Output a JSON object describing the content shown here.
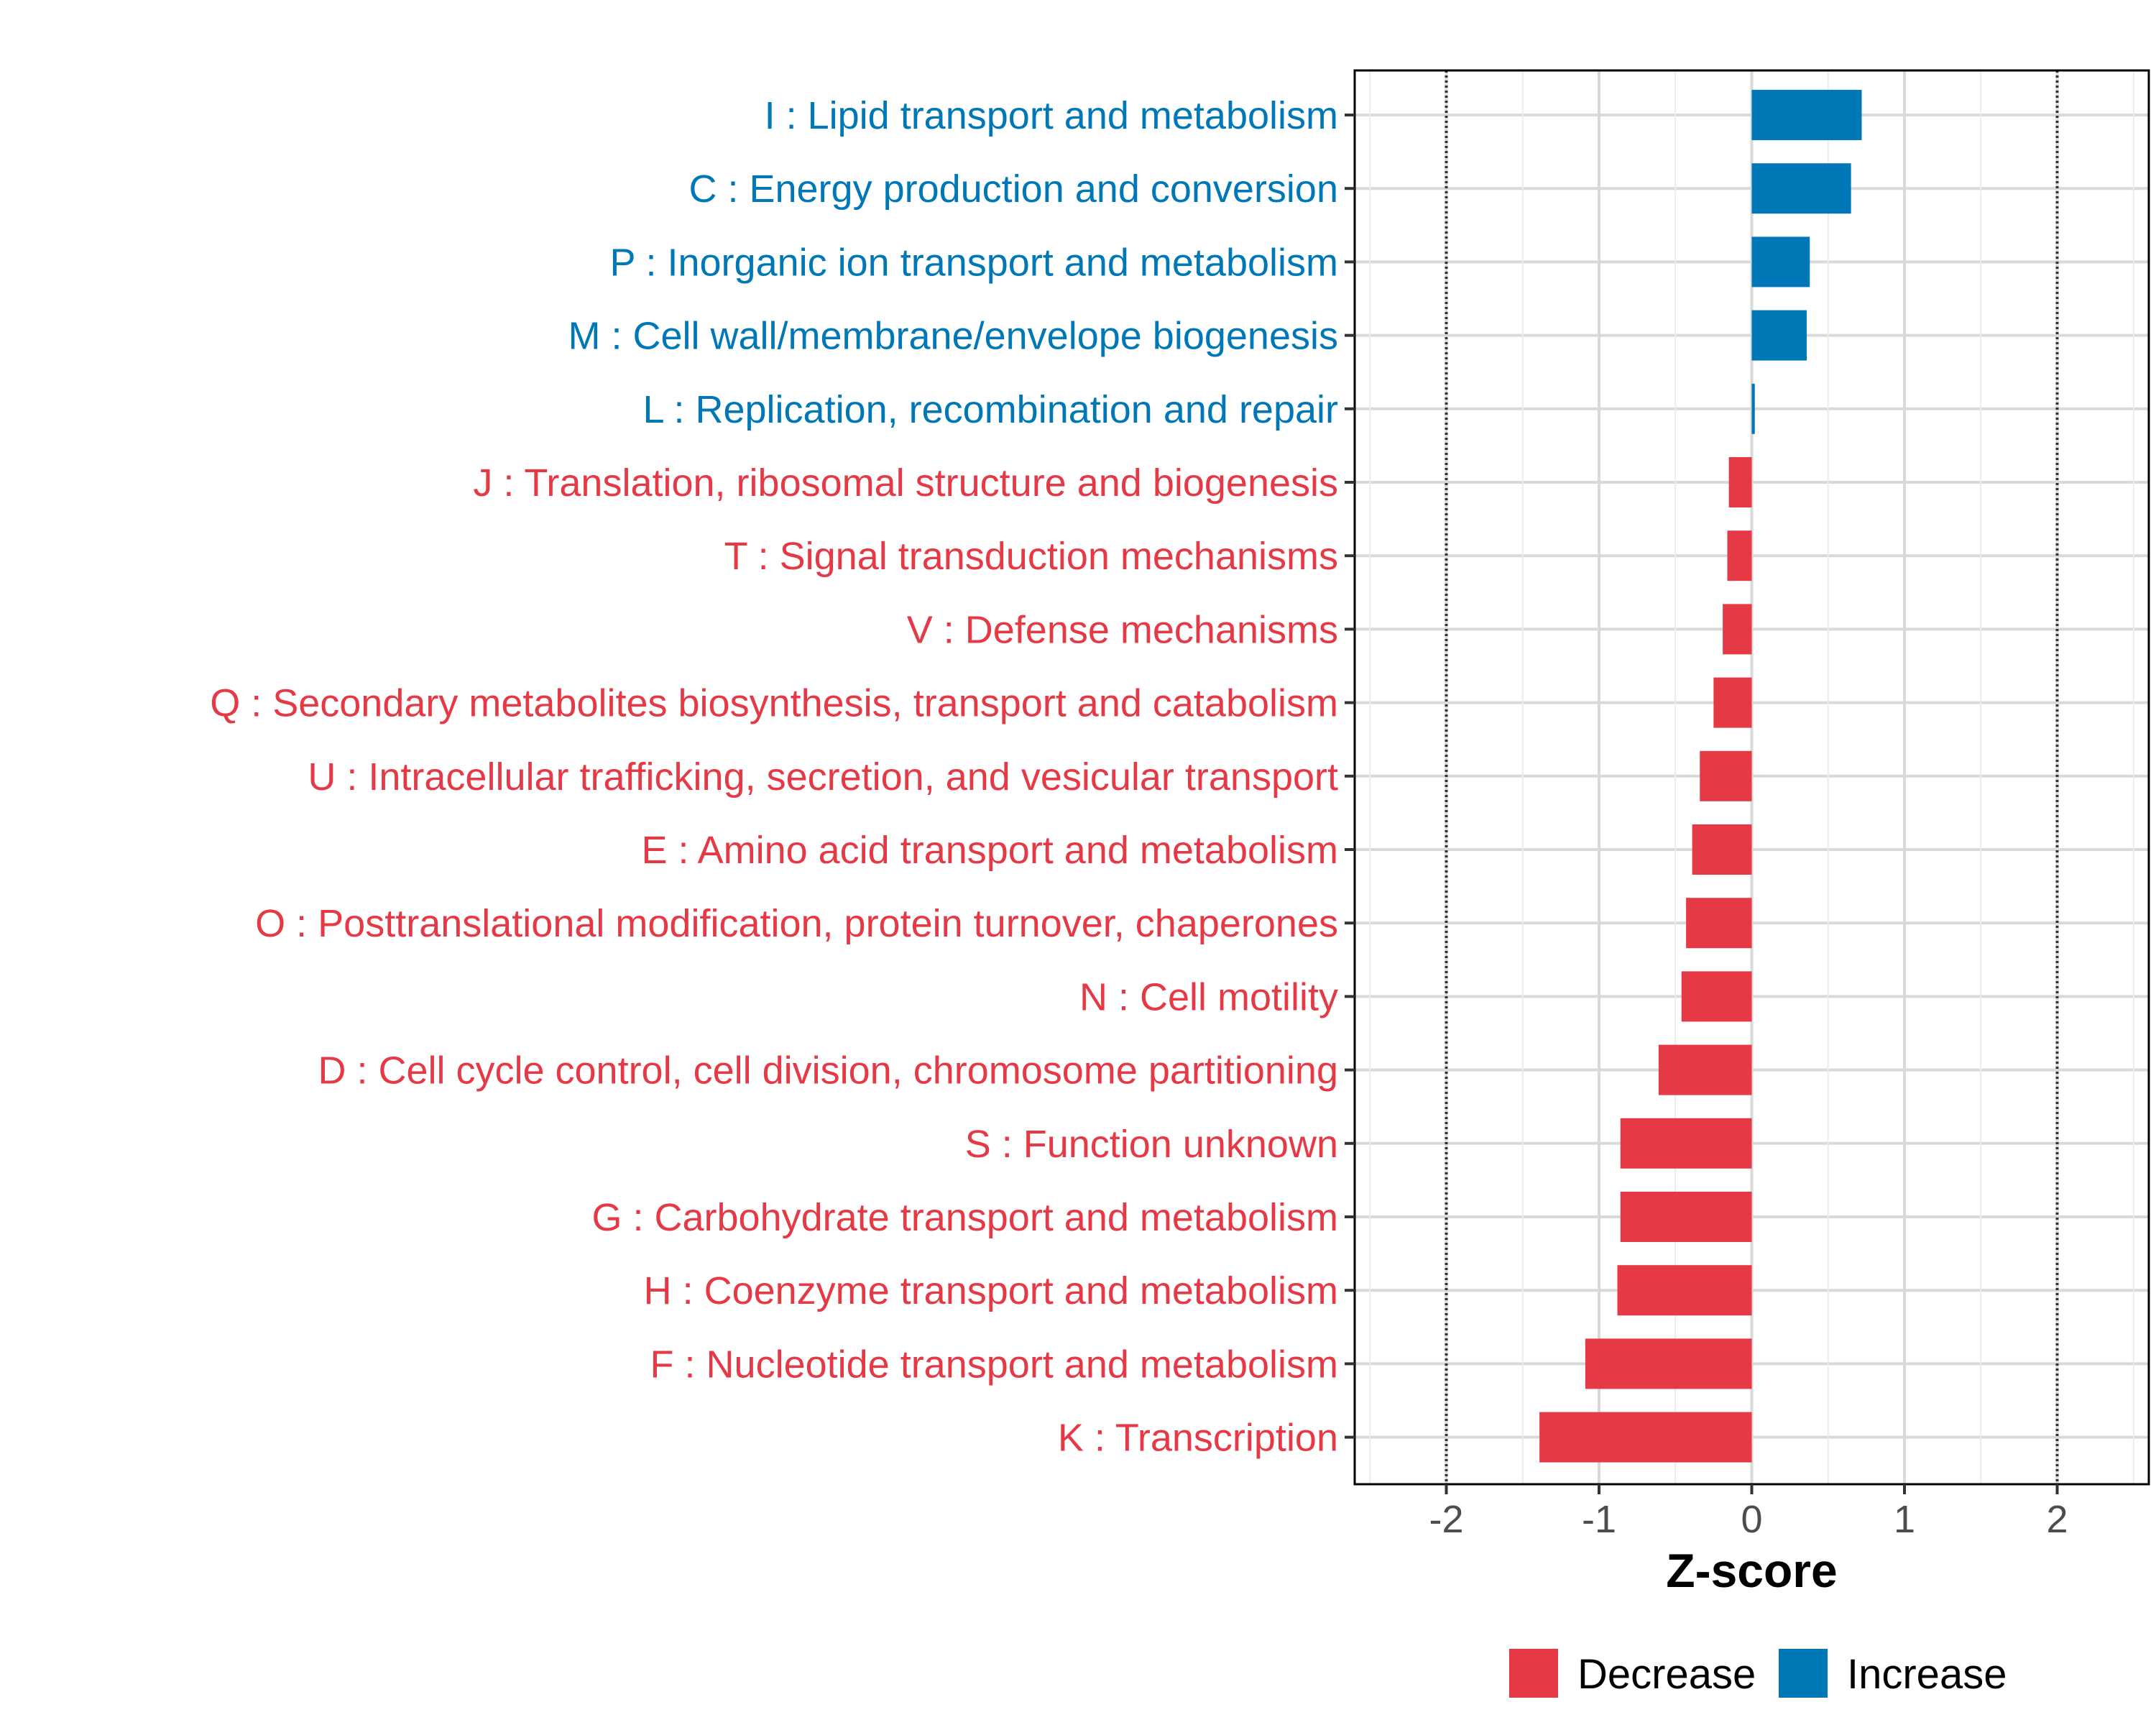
{
  "chart_data": {
    "type": "bar",
    "orientation": "horizontal",
    "xlabel": "Z-score",
    "ylabel": "",
    "xlim": [
      -2.6,
      2.6
    ],
    "xticks": [
      -2,
      -1,
      0,
      1,
      2
    ],
    "xtick_labels": [
      "-2",
      "-1",
      "0",
      "1",
      "2"
    ],
    "reference_lines": [
      -2,
      2
    ],
    "grid": true,
    "legend": {
      "position": "bottom-right",
      "entries": [
        {
          "label": "Decrease",
          "color": "#E63946"
        },
        {
          "label": "Increase",
          "color": "#0077B6"
        }
      ]
    },
    "categories": [
      "I : Lipid transport and metabolism",
      "C : Energy production and conversion",
      "P : Inorganic ion transport and metabolism",
      "M : Cell wall/membrane/envelope biogenesis",
      "L : Replication, recombination and repair",
      "J : Translation, ribosomal structure and biogenesis",
      "T : Signal transduction mechanisms",
      "V : Defense mechanisms",
      "Q : Secondary metabolites biosynthesis, transport and catabolism",
      "U : Intracellular trafficking, secretion, and vesicular transport",
      "E : Amino acid transport and metabolism",
      "O : Posttranslational modification, protein turnover, chaperones",
      "N : Cell motility",
      "D : Cell cycle control, cell division, chromosome partitioning",
      "S : Function unknown",
      "G : Carbohydrate transport and metabolism",
      "H : Coenzyme transport and metabolism",
      "F : Nucleotide transport and metabolism",
      "K : Transcription"
    ],
    "values": [
      0.72,
      0.65,
      0.38,
      0.36,
      0.02,
      -0.15,
      -0.16,
      -0.19,
      -0.25,
      -0.34,
      -0.39,
      -0.43,
      -0.46,
      -0.61,
      -0.86,
      -0.86,
      -0.88,
      -1.09,
      -1.39
    ],
    "groups": [
      "Increase",
      "Increase",
      "Increase",
      "Increase",
      "Increase",
      "Decrease",
      "Decrease",
      "Decrease",
      "Decrease",
      "Decrease",
      "Decrease",
      "Decrease",
      "Decrease",
      "Decrease",
      "Decrease",
      "Decrease",
      "Decrease",
      "Decrease",
      "Decrease"
    ]
  }
}
